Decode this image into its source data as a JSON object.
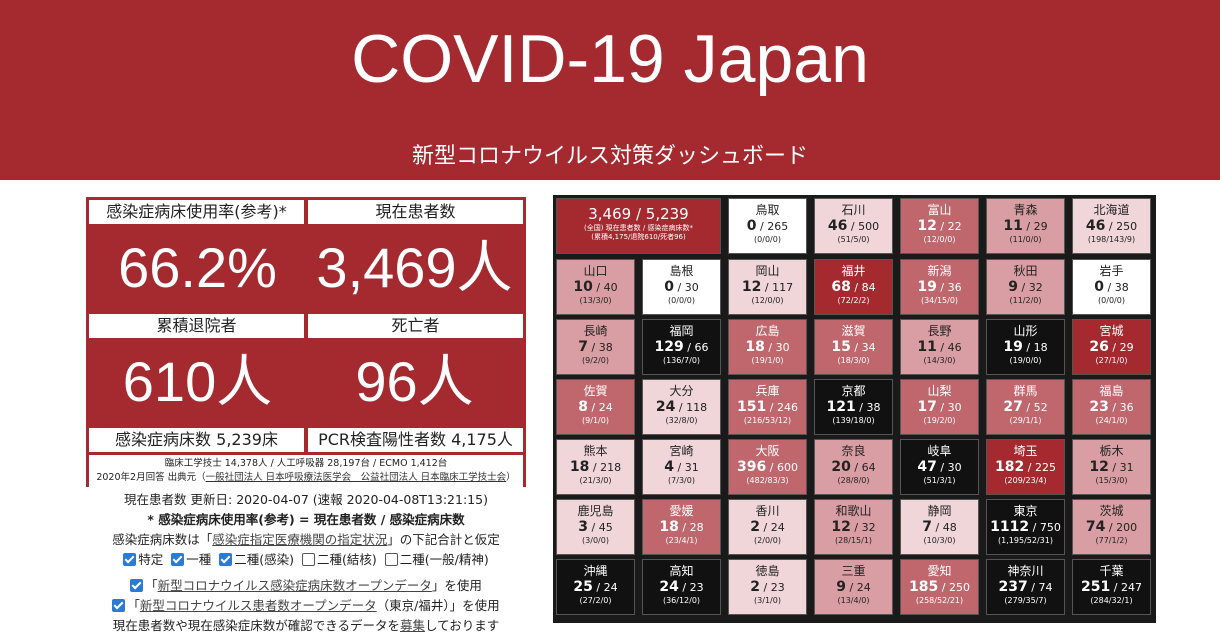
{
  "header": {
    "title": "COVID-19 Japan",
    "subtitle": "新型コロナウイルス対策ダッシュボード"
  },
  "stats": {
    "bed_usage_label": "感染症病床使用率(参考)*",
    "bed_usage_value": "66.2%",
    "current_patients_label": "現在患者数",
    "current_patients_value": "3,469人",
    "discharged_label": "累積退院者",
    "discharged_value": "610人",
    "deaths_label": "死亡者",
    "deaths_value": "96人",
    "beds_total": "感染症病床数 5,239床",
    "pcr_positive": "PCR検査陽性者数 4,175人",
    "footnote_line1": "臨床工学技士 14,378人 / 人工呼吸器 28,197台 / ECMO 1,412台",
    "footnote_line2_prefix": "2020年2月回答 出典元（",
    "footnote_line2_link": "一般社団法人 日本呼吸療法医学会　公益社団法人 日本臨床工学技士会",
    "footnote_line2_suffix": "）"
  },
  "info": {
    "updated": "現在患者数 更新日: 2020-04-07 (速報 2020-04-08T13:21:15)",
    "formula": "* 感染症病床使用率(参考) = 現在患者数 / 感染症病床数",
    "beds_note_prefix": "感染症病床数は「",
    "beds_note_link": "感染症指定医療機関の指定状況",
    "beds_note_suffix": "」の下記合計と仮定",
    "checkboxes": [
      {
        "label": "特定",
        "checked": true
      },
      {
        "label": "一種",
        "checked": true
      },
      {
        "label": "二種(感染)",
        "checked": true
      },
      {
        "label": "二種(結核)",
        "checked": false
      },
      {
        "label": "二種(一般/精神)",
        "checked": false
      }
    ],
    "opt1_prefix": "「",
    "opt1_link": "新型コロナウイルス感染症病床数オープンデータ",
    "opt1_suffix": "」を使用",
    "opt2_prefix": "「",
    "opt2_link": "新型コロナウイルス患者数オープンデータ",
    "opt2_suffix": "（東京/福井）」を使用",
    "recruit_prefix": "現在患者数や現在感染症床数が確認できるデータを",
    "recruit_link": "募集",
    "recruit_suffix": "しております"
  },
  "summary_tile": {
    "main": "3,469 / 5,239",
    "sub1": "(全国) 現在患者数 / 感染症病床数*",
    "sub2": "(累積4,175/退院610/死者96)"
  },
  "colors": {
    "header": "#a52a30",
    "black": "#111111",
    "dark": "#a52a30",
    "mid": "#c0676e",
    "light": "#d99ea3",
    "pale": "#f0d6d8",
    "white": "#ffffff"
  },
  "prefectures": [
    {
      "name": "鳥取",
      "patients": "0",
      "beds": "265",
      "detail": "(0/0/0)",
      "tone": "white"
    },
    {
      "name": "石川",
      "patients": "46",
      "beds": "500",
      "detail": "(51/5/0)",
      "tone": "pale"
    },
    {
      "name": "富山",
      "patients": "12",
      "beds": "22",
      "detail": "(12/0/0)",
      "tone": "mid"
    },
    {
      "name": "青森",
      "patients": "11",
      "beds": "29",
      "detail": "(11/0/0)",
      "tone": "light"
    },
    {
      "name": "北海道",
      "patients": "46",
      "beds": "250",
      "detail": "(198/143/9)",
      "tone": "pale"
    },
    {
      "name": "山口",
      "patients": "10",
      "beds": "40",
      "detail": "(13/3/0)",
      "tone": "light"
    },
    {
      "name": "島根",
      "patients": "0",
      "beds": "30",
      "detail": "(0/0/0)",
      "tone": "white"
    },
    {
      "name": "岡山",
      "patients": "12",
      "beds": "117",
      "detail": "(12/0/0)",
      "tone": "pale"
    },
    {
      "name": "福井",
      "patients": "68",
      "beds": "84",
      "detail": "(72/2/2)",
      "tone": "dark"
    },
    {
      "name": "新潟",
      "patients": "19",
      "beds": "36",
      "detail": "(34/15/0)",
      "tone": "mid"
    },
    {
      "name": "秋田",
      "patients": "9",
      "beds": "32",
      "detail": "(11/2/0)",
      "tone": "light"
    },
    {
      "name": "岩手",
      "patients": "0",
      "beds": "38",
      "detail": "(0/0/0)",
      "tone": "white"
    },
    {
      "name": "長崎",
      "patients": "7",
      "beds": "38",
      "detail": "(9/2/0)",
      "tone": "light"
    },
    {
      "name": "福岡",
      "patients": "129",
      "beds": "66",
      "detail": "(136/7/0)",
      "tone": "black"
    },
    {
      "name": "広島",
      "patients": "18",
      "beds": "30",
      "detail": "(19/1/0)",
      "tone": "mid"
    },
    {
      "name": "滋賀",
      "patients": "15",
      "beds": "34",
      "detail": "(18/3/0)",
      "tone": "mid"
    },
    {
      "name": "長野",
      "patients": "11",
      "beds": "46",
      "detail": "(14/3/0)",
      "tone": "light"
    },
    {
      "name": "山形",
      "patients": "19",
      "beds": "18",
      "detail": "(19/0/0)",
      "tone": "black"
    },
    {
      "name": "宮城",
      "patients": "26",
      "beds": "29",
      "detail": "(27/1/0)",
      "tone": "dark"
    },
    {
      "name": "佐賀",
      "patients": "8",
      "beds": "24",
      "detail": "(9/1/0)",
      "tone": "mid"
    },
    {
      "name": "大分",
      "patients": "24",
      "beds": "118",
      "detail": "(32/8/0)",
      "tone": "pale"
    },
    {
      "name": "兵庫",
      "patients": "151",
      "beds": "246",
      "detail": "(216/53/12)",
      "tone": "mid"
    },
    {
      "name": "京都",
      "patients": "121",
      "beds": "38",
      "detail": "(139/18/0)",
      "tone": "black"
    },
    {
      "name": "山梨",
      "patients": "17",
      "beds": "30",
      "detail": "(19/2/0)",
      "tone": "mid"
    },
    {
      "name": "群馬",
      "patients": "27",
      "beds": "52",
      "detail": "(29/1/1)",
      "tone": "mid"
    },
    {
      "name": "福島",
      "patients": "23",
      "beds": "36",
      "detail": "(24/1/0)",
      "tone": "mid"
    },
    {
      "name": "熊本",
      "patients": "18",
      "beds": "218",
      "detail": "(21/3/0)",
      "tone": "pale"
    },
    {
      "name": "宮崎",
      "patients": "4",
      "beds": "31",
      "detail": "(7/3/0)",
      "tone": "pale"
    },
    {
      "name": "大阪",
      "patients": "396",
      "beds": "600",
      "detail": "(482/83/3)",
      "tone": "mid"
    },
    {
      "name": "奈良",
      "patients": "20",
      "beds": "64",
      "detail": "(28/8/0)",
      "tone": "light"
    },
    {
      "name": "岐阜",
      "patients": "47",
      "beds": "30",
      "detail": "(51/3/1)",
      "tone": "black"
    },
    {
      "name": "埼玉",
      "patients": "182",
      "beds": "225",
      "detail": "(209/23/4)",
      "tone": "dark"
    },
    {
      "name": "栃木",
      "patients": "12",
      "beds": "31",
      "detail": "(15/3/0)",
      "tone": "light"
    },
    {
      "name": "鹿児島",
      "patients": "3",
      "beds": "45",
      "detail": "(3/0/0)",
      "tone": "pale"
    },
    {
      "name": "愛媛",
      "patients": "18",
      "beds": "28",
      "detail": "(23/4/1)",
      "tone": "mid"
    },
    {
      "name": "香川",
      "patients": "2",
      "beds": "24",
      "detail": "(2/0/0)",
      "tone": "pale"
    },
    {
      "name": "和歌山",
      "patients": "12",
      "beds": "32",
      "detail": "(28/15/1)",
      "tone": "light"
    },
    {
      "name": "静岡",
      "patients": "7",
      "beds": "48",
      "detail": "(10/3/0)",
      "tone": "pale"
    },
    {
      "name": "東京",
      "patients": "1112",
      "beds": "750",
      "detail": "(1,195/52/31)",
      "tone": "black"
    },
    {
      "name": "茨城",
      "patients": "74",
      "beds": "200",
      "detail": "(77/1/2)",
      "tone": "light"
    },
    {
      "name": "沖縄",
      "patients": "25",
      "beds": "24",
      "detail": "(27/2/0)",
      "tone": "black"
    },
    {
      "name": "高知",
      "patients": "24",
      "beds": "23",
      "detail": "(36/12/0)",
      "tone": "black"
    },
    {
      "name": "徳島",
      "patients": "2",
      "beds": "23",
      "detail": "(3/1/0)",
      "tone": "pale"
    },
    {
      "name": "三重",
      "patients": "9",
      "beds": "24",
      "detail": "(13/4/0)",
      "tone": "light"
    },
    {
      "name": "愛知",
      "patients": "185",
      "beds": "250",
      "detail": "(258/52/21)",
      "tone": "mid"
    },
    {
      "name": "神奈川",
      "patients": "237",
      "beds": "74",
      "detail": "(279/35/7)",
      "tone": "black"
    },
    {
      "name": "千葉",
      "patients": "251",
      "beds": "247",
      "detail": "(284/32/1)",
      "tone": "black"
    }
  ]
}
